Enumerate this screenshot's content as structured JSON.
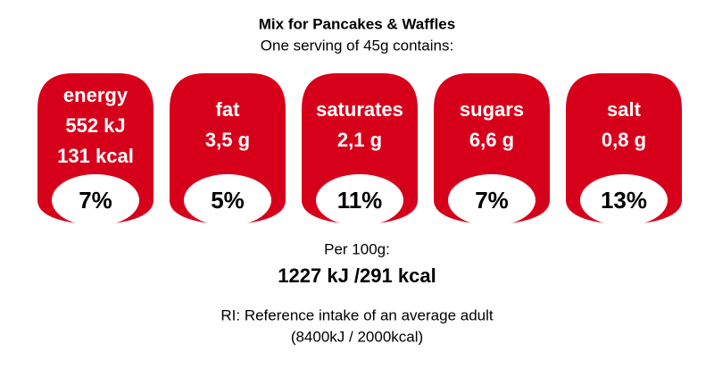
{
  "header": {
    "title": "Mix for Pancakes & Waffles",
    "subtitle": "One serving of 45g contains:"
  },
  "badges": [
    {
      "name": "energy",
      "lines": [
        "552 kJ",
        "131 kcal"
      ],
      "percent": "7%"
    },
    {
      "name": "fat",
      "lines": [
        "3,5 g"
      ],
      "percent": "5%"
    },
    {
      "name": "saturates",
      "lines": [
        "2,1 g"
      ],
      "percent": "11%"
    },
    {
      "name": "sugars",
      "lines": [
        "6,6 g"
      ],
      "percent": "7%"
    },
    {
      "name": "salt",
      "lines": [
        "0,8 g"
      ],
      "percent": "13%"
    }
  ],
  "footer": {
    "per_label": "Per 100g:",
    "per_value": "1227 kJ /291 kcal",
    "ri_note": "RI: Reference intake of an average adult",
    "ri_values": "(8400kJ / 2000kcal)"
  }
}
